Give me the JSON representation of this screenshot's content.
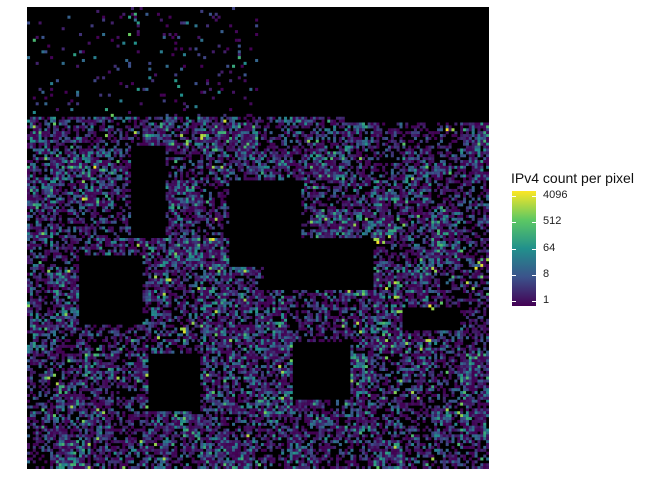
{
  "chart_data": {
    "type": "heatmap",
    "title": "",
    "xlabel": "",
    "ylabel": "",
    "grid": false,
    "legend": {
      "title": "IPv4 count per pixel",
      "placement": "right",
      "scale": "log2",
      "range": [
        1,
        4096
      ],
      "ticks": [
        {
          "value": 1,
          "label": "1"
        },
        {
          "value": 8,
          "label": "8"
        },
        {
          "value": 64,
          "label": "64"
        },
        {
          "value": 512,
          "label": "512"
        },
        {
          "value": 4096,
          "label": "4096"
        }
      ],
      "colors": [
        "#440154",
        "#3b528b",
        "#21908c",
        "#5dc863",
        "#fde725"
      ]
    },
    "empty_color": "#000000",
    "grid_cells": 160,
    "empty_blocks": [
      {
        "x0": 0,
        "y0": 0,
        "x1": 160,
        "y1": 38
      },
      {
        "x0": 0,
        "y0": 0,
        "x1": 40,
        "y1": 30
      },
      {
        "x0": 80,
        "y0": 0,
        "x1": 160,
        "y1": 12
      },
      {
        "x0": 110,
        "y0": 20,
        "x1": 160,
        "y1": 40
      },
      {
        "x0": 36,
        "y0": 48,
        "x1": 48,
        "y1": 80
      },
      {
        "x0": 70,
        "y0": 60,
        "x1": 95,
        "y1": 90
      },
      {
        "x0": 82,
        "y0": 80,
        "x1": 120,
        "y1": 98
      },
      {
        "x0": 18,
        "y0": 86,
        "x1": 40,
        "y1": 110
      },
      {
        "x0": 42,
        "y0": 120,
        "x1": 60,
        "y1": 140
      },
      {
        "x0": 92,
        "y0": 116,
        "x1": 112,
        "y1": 136
      },
      {
        "x0": 2,
        "y0": 14,
        "x1": 20,
        "y1": 28
      },
      {
        "x0": 130,
        "y0": 104,
        "x1": 150,
        "y1": 112
      }
    ],
    "bright_cells": [
      [
        60,
        44
      ],
      [
        61,
        44
      ],
      [
        60,
        45
      ],
      [
        68,
        39
      ],
      [
        63,
        80
      ],
      [
        64,
        80
      ],
      [
        53,
        111
      ],
      [
        54,
        111
      ],
      [
        54,
        112
      ],
      [
        120,
        80
      ],
      [
        121,
        80
      ],
      [
        121,
        81
      ],
      [
        127,
        100
      ],
      [
        128,
        100
      ],
      [
        139,
        103
      ],
      [
        140,
        104
      ],
      [
        138,
        115
      ],
      [
        139,
        115
      ],
      [
        145,
        42
      ],
      [
        147,
        42
      ],
      [
        156,
        88
      ],
      [
        157,
        89
      ],
      [
        155,
        90
      ],
      [
        19,
        66
      ],
      [
        20,
        66
      ],
      [
        23,
        55
      ],
      [
        131,
        116
      ],
      [
        152,
        95
      ],
      [
        48,
        94
      ],
      [
        49,
        94
      ],
      [
        140,
        90
      ],
      [
        141,
        91
      ]
    ]
  }
}
